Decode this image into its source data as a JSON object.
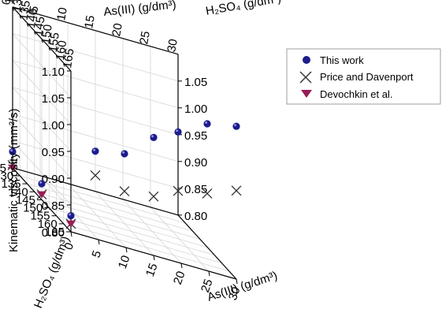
{
  "chart_data": {
    "type": "scatter",
    "axes": {
      "x": {
        "label": "As(III) (g/dm³)",
        "ticks": [
          "0",
          "5",
          "10",
          "15",
          "20",
          "25",
          "30"
        ],
        "range": [
          0,
          30
        ]
      },
      "y": {
        "label": "H₂SO₄ (g/dm³)",
        "ticks": [
          "125",
          "130",
          "135",
          "140",
          "145",
          "150",
          "155",
          "160",
          "165"
        ],
        "range": [
          125,
          165
        ]
      },
      "z": {
        "label": "Kinematic viscosity (mm²/s)",
        "ticks_left": [
          "0.80",
          "0.85",
          "0.90",
          "0.95",
          "1.00",
          "1.05",
          "1.10"
        ],
        "ticks_right": [
          "0.80",
          "0.85",
          "0.90",
          "0.95",
          "1.00",
          "1.05"
        ],
        "range": [
          0.8,
          1.1
        ]
      }
    },
    "grid": true,
    "legend_position": "top-right",
    "series": [
      {
        "name": "This work",
        "marker": "sphere",
        "color": "#1c1c8c",
        "points": [
          {
            "x": 0,
            "y": 125,
            "z": 0.83
          },
          {
            "x": 0,
            "y": 145,
            "z": 0.83
          },
          {
            "x": 0,
            "y": 165,
            "z": 0.83
          },
          {
            "x": 15,
            "y": 125,
            "z": 0.875
          },
          {
            "x": 15,
            "y": 145,
            "z": 0.93
          },
          {
            "x": 15,
            "y": 165,
            "z": 1.02
          },
          {
            "x": 30,
            "y": 125,
            "z": 0.955
          },
          {
            "x": 30,
            "y": 145,
            "z": 1.03
          },
          {
            "x": 30,
            "y": 165,
            "z": 1.085
          }
        ]
      },
      {
        "name": "Price and Davenport",
        "marker": "x",
        "color": "#333333",
        "points": [
          {
            "x": 0,
            "y": 125,
            "z": 0.805
          },
          {
            "x": 0,
            "y": 145,
            "z": 0.81
          },
          {
            "x": 0,
            "y": 165,
            "z": 0.815
          },
          {
            "x": 15,
            "y": 125,
            "z": 0.83
          },
          {
            "x": 15,
            "y": 145,
            "z": 0.86
          },
          {
            "x": 15,
            "y": 165,
            "z": 0.91
          },
          {
            "x": 30,
            "y": 125,
            "z": 0.845
          },
          {
            "x": 30,
            "y": 145,
            "z": 0.9
          },
          {
            "x": 30,
            "y": 165,
            "z": 0.965
          }
        ]
      },
      {
        "name": "Devochkin et al.",
        "marker": "triangle-down",
        "color": "#9b1b57",
        "points": [
          {
            "x": 0,
            "y": 125,
            "z": 0.8
          },
          {
            "x": 0,
            "y": 145,
            "z": 0.81
          },
          {
            "x": 0,
            "y": 165,
            "z": 0.815
          }
        ]
      }
    ]
  }
}
